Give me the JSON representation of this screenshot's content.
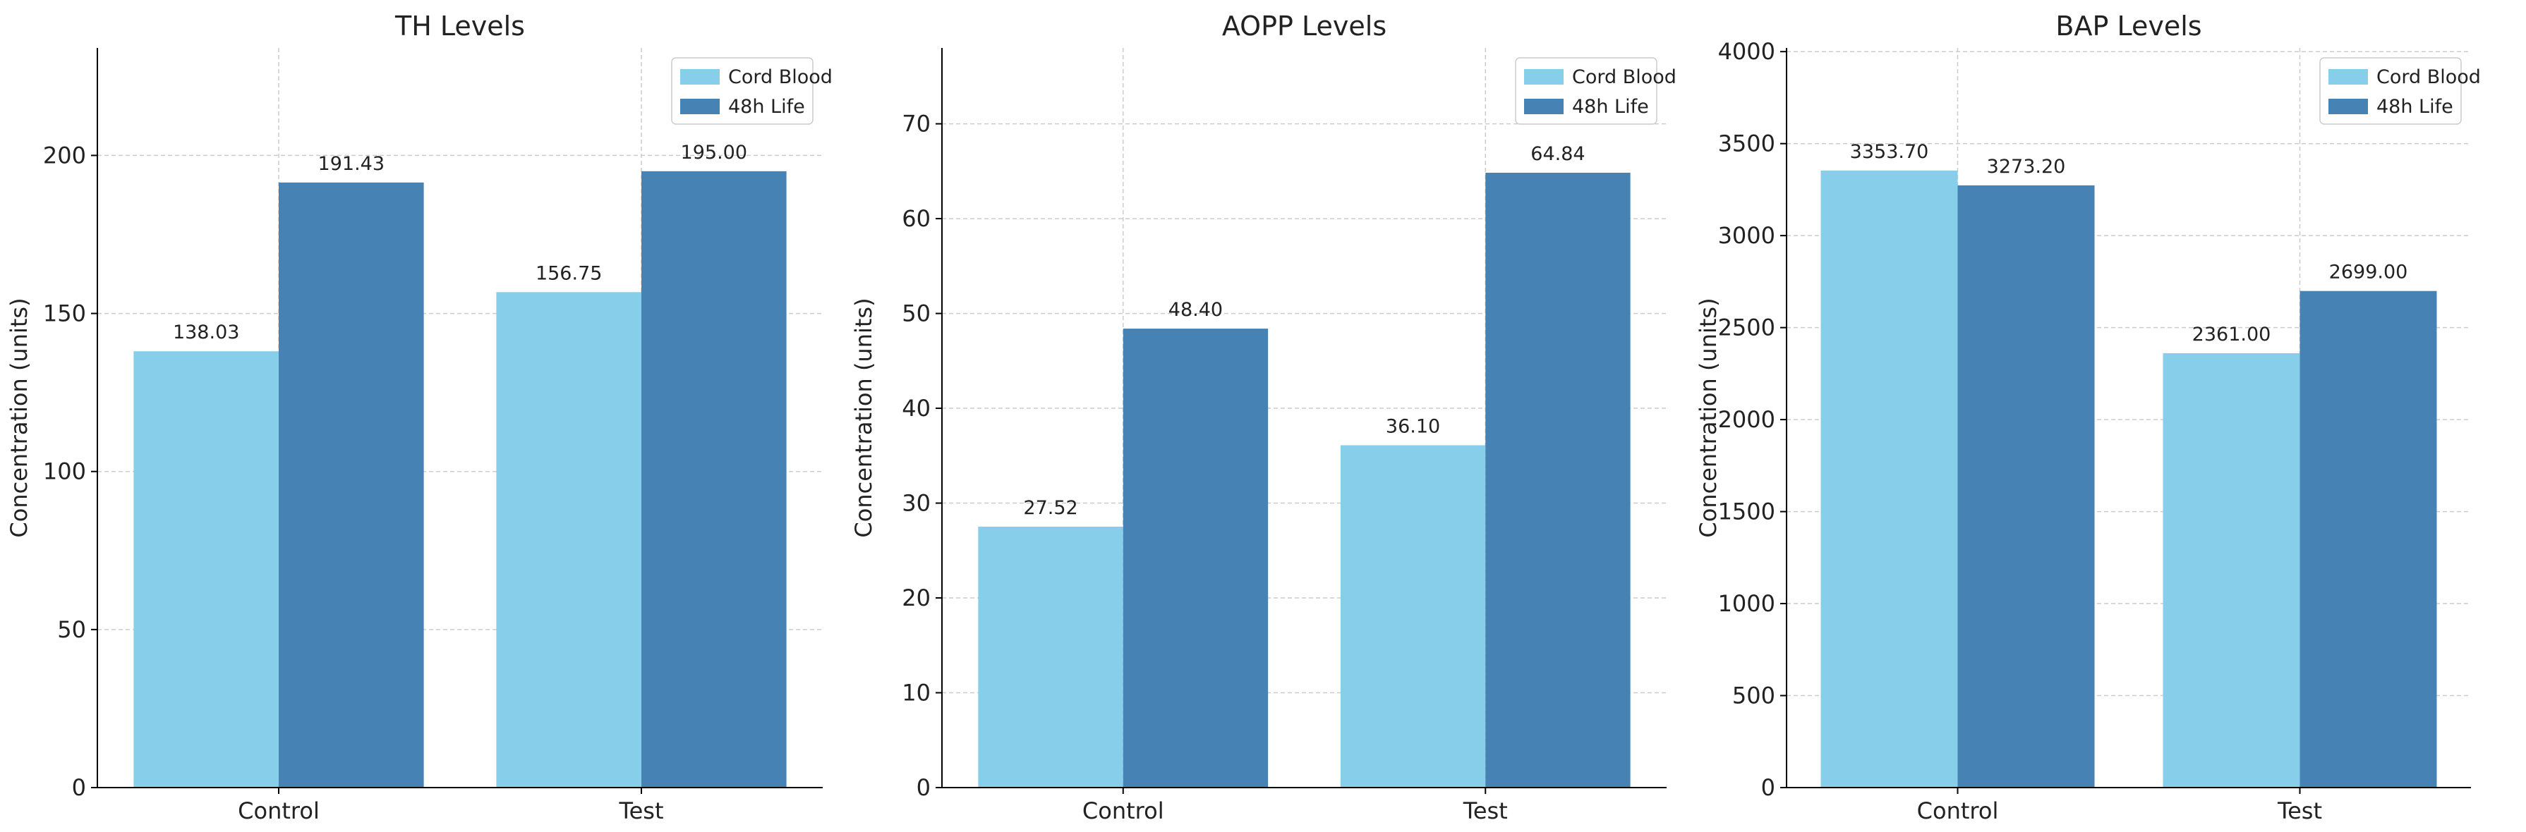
{
  "chart_data": [
    {
      "type": "bar",
      "title": "TH Levels",
      "ylabel": "Concentration (units)",
      "categories": [
        "Control",
        "Test"
      ],
      "series": [
        {
          "name": "Cord Blood",
          "values": [
            138.03,
            156.75
          ],
          "labels": [
            "138.03",
            "156.75"
          ]
        },
        {
          "name": "48h Life",
          "values": [
            191.43,
            195.0
          ],
          "labels": [
            "191.43",
            "195.00"
          ]
        }
      ],
      "ylim": [
        0,
        234
      ],
      "yticks": [
        0,
        50,
        100,
        150,
        200
      ],
      "grid": true,
      "legend": "top-right"
    },
    {
      "type": "bar",
      "title": "AOPP Levels",
      "ylabel": "Concentration (units)",
      "categories": [
        "Control",
        "Test"
      ],
      "series": [
        {
          "name": "Cord Blood",
          "values": [
            27.52,
            36.1
          ],
          "labels": [
            "27.52",
            "36.10"
          ]
        },
        {
          "name": "48h Life",
          "values": [
            48.4,
            64.84
          ],
          "labels": [
            "48.40",
            "64.84"
          ]
        }
      ],
      "ylim": [
        0,
        78
      ],
      "yticks": [
        0,
        10,
        20,
        30,
        40,
        50,
        60,
        70
      ],
      "grid": true,
      "legend": "top-right"
    },
    {
      "type": "bar",
      "title": "BAP Levels",
      "ylabel": "Concentration (units)",
      "categories": [
        "Control",
        "Test"
      ],
      "series": [
        {
          "name": "Cord Blood",
          "values": [
            3353.7,
            2361.0
          ],
          "labels": [
            "3353.70",
            "2361.00"
          ]
        },
        {
          "name": "48h Life",
          "values": [
            3273.2,
            2699.0
          ],
          "labels": [
            "3273.20",
            "2699.00"
          ]
        }
      ],
      "ylim": [
        0,
        4020
      ],
      "yticks": [
        0,
        500,
        1000,
        1500,
        2000,
        2500,
        3000,
        3500,
        4000
      ],
      "grid": true,
      "legend": "top-right"
    }
  ],
  "colors": {
    "Cord Blood": "#87CEEB",
    "48h Life": "#4682B4",
    "grid": "#cccccc",
    "axis": "#000000",
    "text": "#222222"
  }
}
